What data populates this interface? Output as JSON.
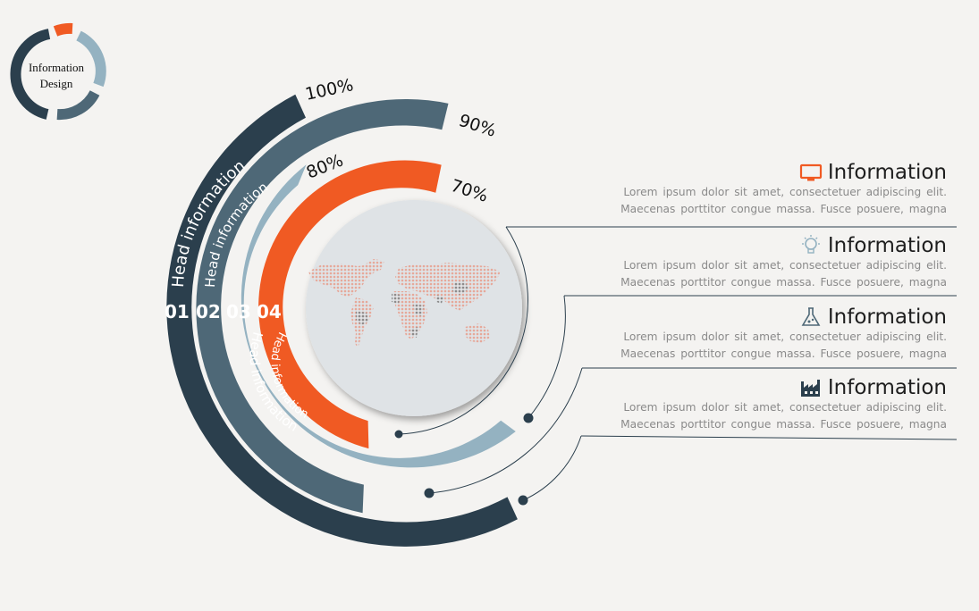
{
  "logo": {
    "line1": "Information",
    "line2": "Design"
  },
  "colors": {
    "dark": "#2b3f4d",
    "mid": "#4e6877",
    "light": "#94b2c1",
    "orange": "#f05a23",
    "globe": "#dfe3e6",
    "line": "#2b3f4d"
  },
  "rings": [
    {
      "number": "01",
      "head": "Head information",
      "percent": "100%",
      "value": 100,
      "color": "#2b3f4d"
    },
    {
      "number": "02",
      "head": "Head information",
      "percent": "90%",
      "value": 90,
      "color": "#4e6877"
    },
    {
      "number": "03",
      "head": "Head information",
      "percent": "80%",
      "value": 80,
      "color": "#94b2c1"
    },
    {
      "number": "04",
      "head": "Head information",
      "percent": "70%",
      "value": 70,
      "color": "#f05a23"
    }
  ],
  "info_items": [
    {
      "icon": "monitor-icon",
      "title": "Information",
      "line1": "Lorem ipsum dolor sit amet, consectetuer adipiscing elit.",
      "line2": "Maecenas porttitor congue massa. Fusce posuere, magna"
    },
    {
      "icon": "lightbulb-icon",
      "title": "Information",
      "line1": "Lorem ipsum dolor sit amet, consectetuer adipiscing elit.",
      "line2": "Maecenas porttitor congue massa. Fusce posuere, magna"
    },
    {
      "icon": "flask-icon",
      "title": "Information",
      "line1": "Lorem ipsum dolor sit amet, consectetuer adipiscing elit.",
      "line2": "Maecenas porttitor congue massa. Fusce posuere, magna"
    },
    {
      "icon": "factory-icon",
      "title": "Information",
      "line1": "Lorem ipsum dolor sit amet, consectetuer adipiscing elit.",
      "line2": "Maecenas porttitor congue massa. Fusce posuere, magna"
    }
  ]
}
